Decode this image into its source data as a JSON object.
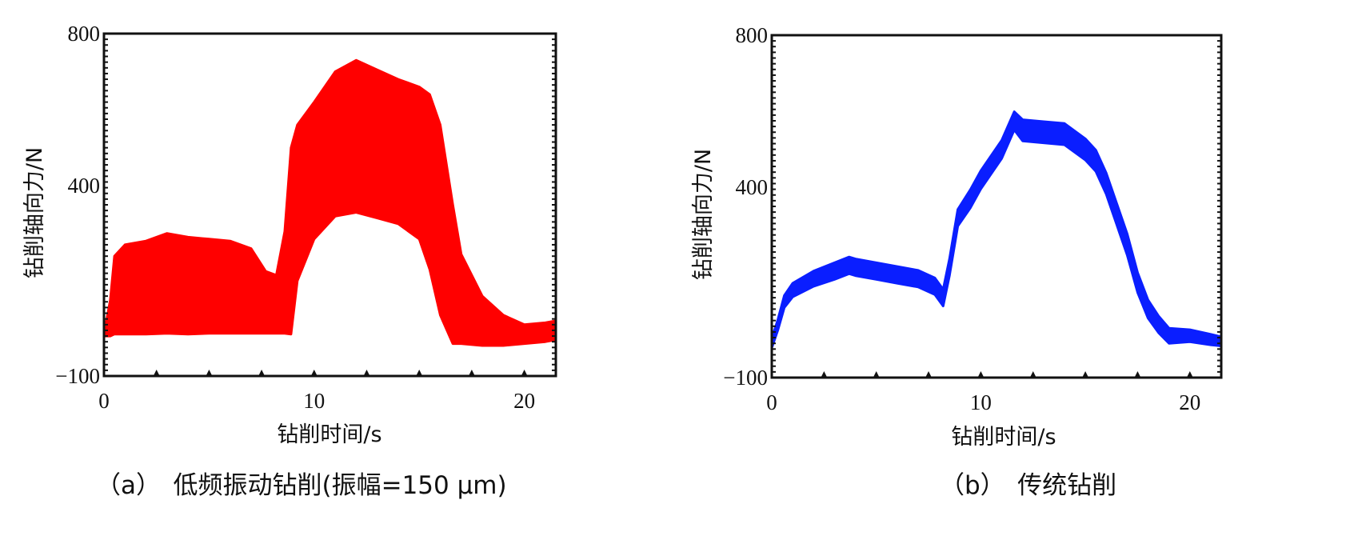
{
  "chart_data": [
    {
      "type": "area",
      "caption": "（a）　低频振动钻削(振幅=150 μm)",
      "xlabel": "钻削时间/s",
      "ylabel": "钻削轴向力/N",
      "xlim": [
        0,
        21.5
      ],
      "ylim": [
        -100,
        800
      ],
      "xticks": [
        "0",
        "10",
        "20"
      ],
      "yticks": [
        "800",
        "400",
        "−100"
      ],
      "grid": false,
      "color": "#ff0000",
      "series": [
        {
          "x": [
            0,
            0.3,
            0.5,
            1,
            2,
            3,
            4,
            5,
            6,
            7,
            7.7,
            8.2,
            8.6,
            8.9,
            9.2,
            10,
            11,
            12,
            13,
            14,
            15,
            15.5,
            16,
            16.6,
            17,
            18,
            19,
            20,
            21,
            21.5
          ],
          "upper": [
            10,
            100,
            215,
            245,
            255,
            275,
            265,
            260,
            255,
            235,
            175,
            165,
            280,
            500,
            560,
            620,
            700,
            730,
            705,
            680,
            660,
            640,
            560,
            350,
            220,
            110,
            60,
            35,
            40,
            45
          ],
          "lower": [
            5,
            5,
            10,
            10,
            10,
            12,
            10,
            12,
            12,
            12,
            12,
            12,
            12,
            10,
            150,
            260,
            320,
            330,
            315,
            300,
            260,
            180,
            60,
            -15,
            -15,
            -20,
            -20,
            -15,
            -10,
            -5
          ]
        }
      ]
    },
    {
      "type": "area",
      "caption": "（b）　传统钻削",
      "xlabel": "钻削时间/s",
      "ylabel": "钻削轴向力/N",
      "xlim": [
        0,
        21.5
      ],
      "ylim": [
        -100,
        800
      ],
      "xticks": [
        "0",
        "10",
        "20"
      ],
      "yticks": [
        "800",
        "400",
        "−100"
      ],
      "grid": false,
      "color": "#0a1eff",
      "series": [
        {
          "x": [
            0,
            0.3,
            0.6,
            1,
            2,
            3,
            3.7,
            4,
            5,
            6,
            7,
            7.8,
            8.2,
            8.5,
            8.9,
            9.5,
            10,
            11,
            11.6,
            12,
            13,
            14,
            15,
            15.5,
            16,
            16.5,
            17,
            17.5,
            18,
            18.5,
            19,
            20,
            21,
            21.5
          ],
          "mid": [
            -10,
            40,
            100,
            130,
            160,
            180,
            195,
            190,
            180,
            170,
            160,
            140,
            110,
            190,
            320,
            370,
            420,
            500,
            575,
            550,
            545,
            540,
            500,
            470,
            410,
            330,
            250,
            150,
            80,
            40,
            10,
            10,
            0,
            -5
          ],
          "band": [
            12,
            14,
            16,
            18,
            20,
            22,
            22,
            22,
            22,
            22,
            22,
            22,
            22,
            22,
            22,
            24,
            24,
            24,
            24,
            28,
            28,
            28,
            28,
            28,
            28,
            28,
            28,
            26,
            24,
            22,
            20,
            16,
            14,
            12
          ]
        }
      ]
    }
  ]
}
